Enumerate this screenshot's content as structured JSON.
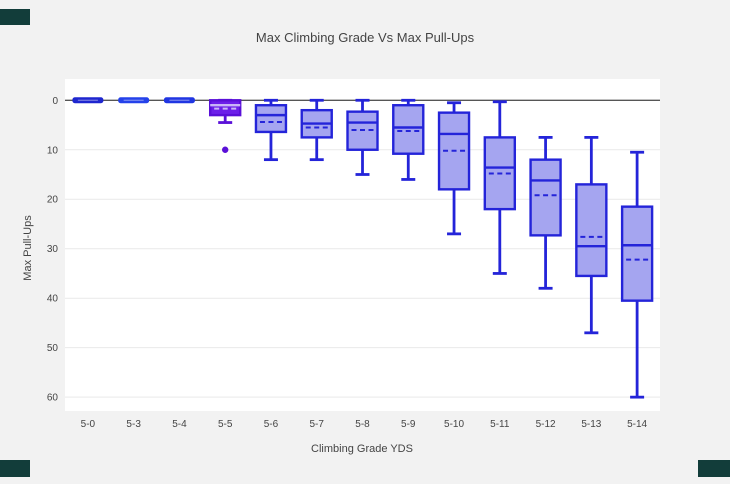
{
  "page": {
    "background": "#f2f2f2",
    "corner_artifact_color": "#123d3a"
  },
  "chart_data": {
    "type": "box",
    "title": "Max Climbing Grade Vs Max Pull-Ups",
    "xlabel": "Climbing Grade YDS",
    "ylabel": "Max Pull-Ups",
    "y_ticks": [
      0,
      10,
      20,
      30,
      40,
      50,
      60
    ],
    "y_axis_reversed": true,
    "ylim": [
      -4.3,
      62.8
    ],
    "legend": "none",
    "grid": "on",
    "categories": [
      "5-0",
      "5-3",
      "5-4",
      "5-5",
      "5-6",
      "5-7",
      "5-8",
      "5-9",
      "5-10",
      "5-11",
      "5-12",
      "5-13",
      "5-14"
    ],
    "style": {
      "plot_bg": "#ffffff",
      "grid_color": "#e9e9e9",
      "zero_line_color": "#565656",
      "text_color": "#444444",
      "default_line": "#2424d9",
      "default_fill": "#a5a5f0"
    },
    "boxes": [
      {
        "label": "5-0",
        "collapsed": true,
        "stats": {
          "min": 0,
          "q1": 0,
          "median": 0,
          "mean": 0,
          "q3": 0,
          "max": 0
        },
        "outliers": [],
        "line": "#1f27cf",
        "fill": "#1f27cf"
      },
      {
        "label": "5-3",
        "collapsed": true,
        "stats": {
          "min": 0,
          "q1": 0,
          "median": 0,
          "mean": 0,
          "q3": 0,
          "max": 0
        },
        "outliers": [],
        "line": "#2542ea",
        "fill": "#2542ea"
      },
      {
        "label": "5-4",
        "collapsed": true,
        "stats": {
          "min": 0,
          "q1": 0,
          "median": 0,
          "mean": 0,
          "q3": 0,
          "max": 0
        },
        "outliers": [],
        "line": "#2136e2",
        "fill": "#2136e2"
      },
      {
        "label": "5-5",
        "collapsed": false,
        "stats": {
          "min": 0,
          "q1": 0,
          "median": 1,
          "mean": 1.7,
          "q3": 3,
          "max": 4.5
        },
        "outliers": [
          10
        ],
        "line": "#5a10d8",
        "fill": "#6c1fe9",
        "inner": "#c9b6f7"
      },
      {
        "label": "5-6",
        "collapsed": false,
        "stats": {
          "min": 0,
          "q1": 1,
          "median": 3,
          "mean": 4.4,
          "q3": 6.4,
          "max": 12
        },
        "outliers": []
      },
      {
        "label": "5-7",
        "collapsed": false,
        "stats": {
          "min": 0,
          "q1": 2,
          "median": 4.7,
          "mean": 5.5,
          "q3": 7.5,
          "max": 12
        },
        "outliers": []
      },
      {
        "label": "5-8",
        "collapsed": false,
        "stats": {
          "min": 0,
          "q1": 2.3,
          "median": 4.5,
          "mean": 6,
          "q3": 10,
          "max": 15
        },
        "outliers": []
      },
      {
        "label": "5-9",
        "collapsed": false,
        "stats": {
          "min": 0,
          "q1": 1,
          "median": 5.5,
          "mean": 6.2,
          "q3": 10.8,
          "max": 16
        },
        "outliers": []
      },
      {
        "label": "5-10",
        "collapsed": false,
        "stats": {
          "min": 0.5,
          "q1": 2.5,
          "median": 6.8,
          "mean": 10.2,
          "q3": 18,
          "max": 27
        },
        "outliers": []
      },
      {
        "label": "5-11",
        "collapsed": false,
        "stats": {
          "min": 0.3,
          "q1": 7.5,
          "median": 13.6,
          "mean": 14.8,
          "q3": 22,
          "max": 35
        },
        "outliers": []
      },
      {
        "label": "5-12",
        "collapsed": false,
        "stats": {
          "min": 7.5,
          "q1": 12,
          "median": 16.2,
          "mean": 19.2,
          "q3": 27.3,
          "max": 38
        },
        "outliers": []
      },
      {
        "label": "5-13",
        "collapsed": false,
        "stats": {
          "min": 7.5,
          "q1": 17,
          "median": 29.5,
          "mean": 27.6,
          "q3": 35.5,
          "max": 47
        },
        "outliers": []
      },
      {
        "label": "5-14",
        "collapsed": false,
        "stats": {
          "min": 10.5,
          "q1": 21.5,
          "median": 29.3,
          "mean": 32.2,
          "q3": 40.5,
          "max": 60
        },
        "outliers": []
      }
    ]
  }
}
